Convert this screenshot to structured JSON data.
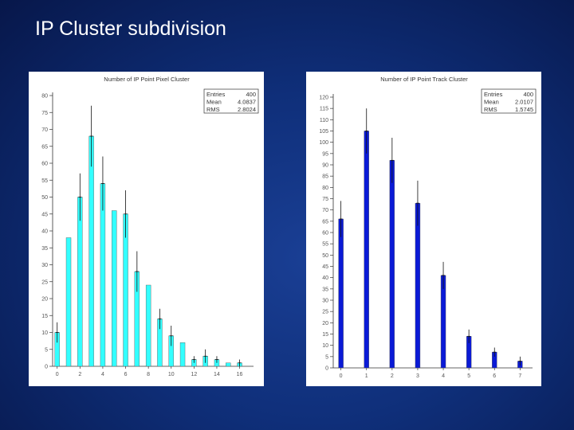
{
  "slide": {
    "title": "IP Cluster subdivision"
  },
  "chart_data": [
    {
      "type": "bar",
      "title": "Number of IP Point Pixel Cluster",
      "color": "#33ffff",
      "stats": [
        {
          "label": "Entries",
          "value": "400"
        },
        {
          "label": "Mean",
          "value": "4.0837"
        },
        {
          "label": "RMS",
          "value": "2.8024"
        }
      ],
      "categories": [
        0,
        1,
        2,
        3,
        4,
        5,
        6,
        7,
        8,
        9,
        10,
        11,
        12,
        13,
        14,
        15,
        16
      ],
      "values": [
        10,
        38,
        50,
        68,
        54,
        46,
        45,
        28,
        24,
        14,
        9,
        7,
        2,
        3,
        2,
        1,
        1
      ],
      "errors": [
        3,
        0,
        7,
        9,
        8,
        0,
        7,
        6,
        0,
        3,
        3,
        0,
        1,
        2,
        1,
        0,
        1
      ],
      "ylim": [
        0,
        80
      ],
      "yticks": [
        0,
        5,
        10,
        15,
        20,
        25,
        30,
        35,
        40,
        45,
        50,
        55,
        60,
        65,
        70,
        75,
        80
      ],
      "xticks": [
        0,
        2,
        4,
        6,
        8,
        10,
        12,
        14,
        16
      ]
    },
    {
      "type": "bar",
      "title": "Number of IP Point Track Cluster",
      "color": "#0a1ad6",
      "stats": [
        {
          "label": "Entries",
          "value": "400"
        },
        {
          "label": "Mean",
          "value": "2.0107"
        },
        {
          "label": "RMS",
          "value": "1.5745"
        }
      ],
      "categories": [
        0,
        1,
        2,
        3,
        4,
        5,
        6,
        7
      ],
      "values": [
        66,
        105,
        92,
        73,
        41,
        14,
        7,
        3
      ],
      "errors": [
        8,
        10,
        10,
        10,
        6,
        3,
        2,
        2
      ],
      "ylim": [
        0,
        120
      ],
      "yticks": [
        0,
        5,
        10,
        15,
        20,
        25,
        30,
        35,
        40,
        45,
        50,
        55,
        60,
        65,
        70,
        75,
        80,
        85,
        90,
        95,
        100,
        105,
        110,
        115,
        120
      ],
      "xticks": [
        0,
        1,
        2,
        3,
        4,
        5,
        6,
        7
      ]
    }
  ]
}
